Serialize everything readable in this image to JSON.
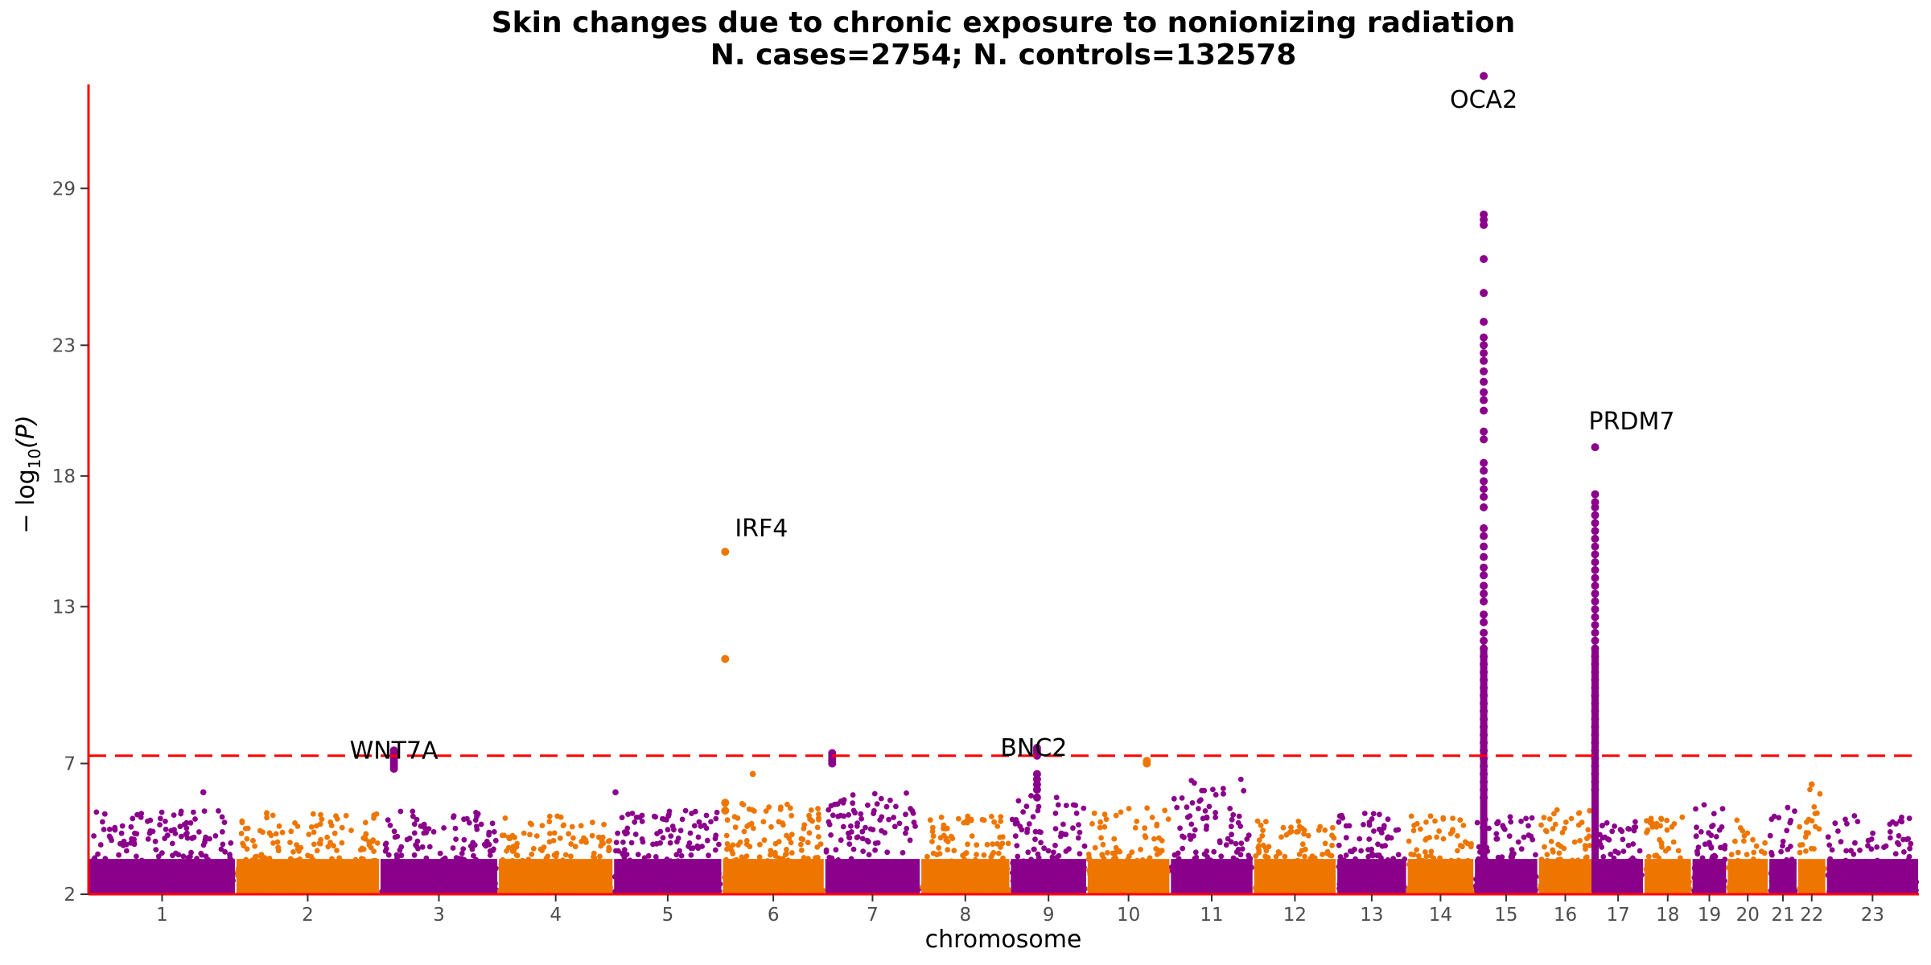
{
  "chart_data": {
    "type": "scatter",
    "subtype": "manhattan",
    "title": "Skin changes due to chronic exposure to nonionizing radiation",
    "subtitle": "N. cases=2754; N. controls=132578",
    "xlabel": "chromosome",
    "ylabel_prefix": "− log",
    "ylabel_sub": "10",
    "ylabel_suffix": "(P)",
    "ylim": [
      2,
      33.5
    ],
    "yticks": [
      2,
      7,
      13,
      18,
      23,
      29
    ],
    "significance_threshold": 7.3,
    "colors": {
      "odd": "#8B008B",
      "even": "#EE7600",
      "axis": "#FF0000",
      "threshold": "#FF0000"
    },
    "chromosomes": [
      {
        "label": "1",
        "weight": 4.6,
        "max": 5.2
      },
      {
        "label": "2",
        "weight": 4.5,
        "max": 5.3
      },
      {
        "label": "3",
        "weight": 3.7,
        "max": 5.2
      },
      {
        "label": "4",
        "weight": 3.6,
        "max": 5.0
      },
      {
        "label": "5",
        "weight": 3.4,
        "max": 5.2
      },
      {
        "label": "6",
        "weight": 3.2,
        "max": 5.5
      },
      {
        "label": "7",
        "weight": 3.0,
        "max": 5.9
      },
      {
        "label": "8",
        "weight": 2.8,
        "max": 5.0
      },
      {
        "label": "9",
        "weight": 2.4,
        "max": 5.8
      },
      {
        "label": "10",
        "weight": 2.6,
        "max": 5.3
      },
      {
        "label": "11",
        "weight": 2.6,
        "max": 6.5
      },
      {
        "label": "12",
        "weight": 2.6,
        "max": 4.8
      },
      {
        "label": "13",
        "weight": 2.2,
        "max": 5.1
      },
      {
        "label": "14",
        "weight": 2.1,
        "max": 5.0
      },
      {
        "label": "15",
        "weight": 2.0,
        "max": 5.0
      },
      {
        "label": "16",
        "weight": 1.7,
        "max": 5.3
      },
      {
        "label": "17",
        "weight": 1.6,
        "max": 4.8
      },
      {
        "label": "18",
        "weight": 1.5,
        "max": 5.0
      },
      {
        "label": "19",
        "weight": 1.1,
        "max": 5.5
      },
      {
        "label": "20",
        "weight": 1.3,
        "max": 4.9
      },
      {
        "label": "21",
        "weight": 0.9,
        "max": 5.4
      },
      {
        "label": "22",
        "weight": 0.9,
        "max": 6.2
      },
      {
        "label": "23",
        "weight": 2.9,
        "max": 5.0
      }
    ],
    "peaks": [
      {
        "chr": "3",
        "pos": 0.12,
        "values": [
          7.5,
          7.4,
          7.3,
          7.2,
          7.1,
          7.0,
          6.9,
          6.8
        ]
      },
      {
        "chr": "6",
        "pos": 0.03,
        "values": [
          15.1,
          11.0,
          5.5,
          5.2
        ]
      },
      {
        "chr": "7",
        "pos": 0.08,
        "values": [
          7.4,
          7.3,
          7.2,
          7.1,
          7.0
        ]
      },
      {
        "chr": "9",
        "pos": 0.35,
        "values": [
          7.6,
          7.5,
          7.4,
          7.3,
          6.6,
          6.4,
          6.2,
          6.0,
          5.7
        ]
      },
      {
        "chr": "10",
        "pos": 0.72,
        "values": [
          7.1,
          7.0
        ]
      },
      {
        "chr": "15",
        "pos": 0.15,
        "values": [
          33.3,
          28.0,
          27.8,
          27.6,
          26.3,
          25.0,
          23.9,
          23.3,
          23.0,
          22.7,
          22.4,
          22.0,
          21.6,
          21.2,
          20.9,
          20.5,
          19.7,
          19.4,
          18.5,
          18.2,
          17.8,
          17.5,
          17.2,
          16.8,
          16.0,
          15.7,
          15.3,
          14.9,
          14.5,
          14.2,
          13.8,
          13.5,
          13.2,
          12.7,
          12.4,
          12.0,
          11.7,
          11.4,
          11.1,
          10.8,
          10.5,
          10.2,
          9.9,
          9.6,
          9.3,
          9.0,
          8.7,
          8.4,
          8.1,
          7.8,
          7.5,
          7.2,
          6.9,
          6.6,
          6.3,
          6.0,
          5.7
        ]
      },
      {
        "chr": "17",
        "pos": 0.05,
        "values": [
          19.1,
          17.3,
          17.0,
          16.8,
          16.5,
          16.2,
          15.9,
          15.6,
          15.3,
          15.0,
          14.7,
          14.4,
          14.1,
          13.8,
          13.5,
          13.2,
          12.9,
          12.6,
          12.3,
          12.0,
          11.7,
          11.4,
          11.1,
          10.8,
          10.5,
          10.2,
          9.9,
          9.6,
          9.3,
          9.0,
          8.7,
          8.4,
          8.1,
          7.8,
          7.5,
          7.2,
          6.9,
          6.6,
          6.3,
          6.0
        ]
      }
    ],
    "extra_points": [
      {
        "chr": "1",
        "pos": 0.78,
        "value": 5.9
      },
      {
        "chr": "6",
        "pos": 0.3,
        "value": 6.6
      },
      {
        "chr": "5",
        "pos": 0.02,
        "value": 5.9
      },
      {
        "chr": "22",
        "pos": 0.5,
        "value": 6.2
      }
    ],
    "annotations": [
      {
        "gene": "WNT7A",
        "chr": "3",
        "pos": 0.12,
        "value": 7.5,
        "anchor": "middle",
        "dx": 0,
        "dy": -0.5
      },
      {
        "gene": "IRF4",
        "chr": "6",
        "pos": 0.03,
        "value": 15.1,
        "anchor": "start",
        "dx": 12,
        "dy": 0.4
      },
      {
        "gene": "BNC2",
        "chr": "9",
        "pos": 0.35,
        "value": 7.6,
        "anchor": "middle",
        "dx": -4,
        "dy": -0.5
      },
      {
        "gene": "OCA2",
        "chr": "15",
        "pos": 0.15,
        "value": 33.3,
        "anchor": "middle",
        "dx": 0,
        "dy": -1.4
      },
      {
        "gene": "PRDM7",
        "chr": "17",
        "pos": 0.05,
        "value": 19.1,
        "anchor": "start",
        "dx": -8,
        "dy": 0.5
      }
    ]
  }
}
